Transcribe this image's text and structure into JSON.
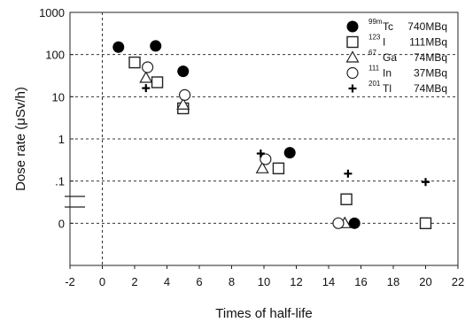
{
  "chart_data": {
    "type": "scatter",
    "title": "",
    "xlabel": "Times of half-life",
    "ylabel": "Dose rate (μSv/h)",
    "xlim": [
      -2,
      22
    ],
    "x_ticks": [
      -2,
      0,
      2,
      4,
      6,
      8,
      10,
      12,
      14,
      16,
      18,
      20,
      22
    ],
    "y_ticks": [
      {
        "label": "1000",
        "level": 5
      },
      {
        "label": "100",
        "level": 4
      },
      {
        "label": "10",
        "level": 3
      },
      {
        "label": "1",
        "level": 2
      },
      {
        "label": ".1",
        "level": 1
      },
      {
        "label": "0",
        "level": 0
      }
    ],
    "ylim_levels": [
      -1,
      5
    ],
    "axis_break": true,
    "grid": "dashed horizontal at 100, 10, 1, .1, 0; dashed vertical at x=0",
    "legend_position": "top-right",
    "series": [
      {
        "nuclide": "Tc",
        "mass": "99m",
        "activity": "740MBq",
        "marker": "filled-circle",
        "points": [
          {
            "x": 1.0,
            "y": 150
          },
          {
            "x": 3.3,
            "y": 160
          },
          {
            "x": 5.0,
            "y": 40
          },
          {
            "x": 11.6,
            "y": 0.47
          },
          {
            "x": 15.6,
            "y": 0
          }
        ]
      },
      {
        "nuclide": "I",
        "mass": "123",
        "activity": "111MBq",
        "marker": "open-square",
        "points": [
          {
            "x": 2.0,
            "y": 65
          },
          {
            "x": 3.4,
            "y": 22
          },
          {
            "x": 5.0,
            "y": 5.3
          },
          {
            "x": 10.9,
            "y": 0.2
          },
          {
            "x": 15.1,
            "y": 0.037
          },
          {
            "x": 20.0,
            "y": 0
          }
        ]
      },
      {
        "nuclide": "Ga",
        "mass": "67",
        "activity": "74MBq",
        "marker": "open-triangle",
        "points": [
          {
            "x": 2.7,
            "y": 28
          },
          {
            "x": 5.0,
            "y": 6.5
          },
          {
            "x": 9.9,
            "y": 0.2
          },
          {
            "x": 15.0,
            "y": 0
          }
        ]
      },
      {
        "nuclide": "In",
        "mass": "111",
        "activity": "37MBq",
        "marker": "open-circle",
        "points": [
          {
            "x": 2.8,
            "y": 50
          },
          {
            "x": 5.1,
            "y": 11
          },
          {
            "x": 10.1,
            "y": 0.33
          },
          {
            "x": 14.6,
            "y": 0
          }
        ]
      },
      {
        "nuclide": "Tl",
        "mass": "201",
        "activity": "74MBq",
        "marker": "plus",
        "points": [
          {
            "x": 2.7,
            "y": 16
          },
          {
            "x": 9.8,
            "y": 0.45
          },
          {
            "x": 15.2,
            "y": 0.15
          },
          {
            "x": 20.0,
            "y": 0.095
          }
        ]
      }
    ]
  }
}
